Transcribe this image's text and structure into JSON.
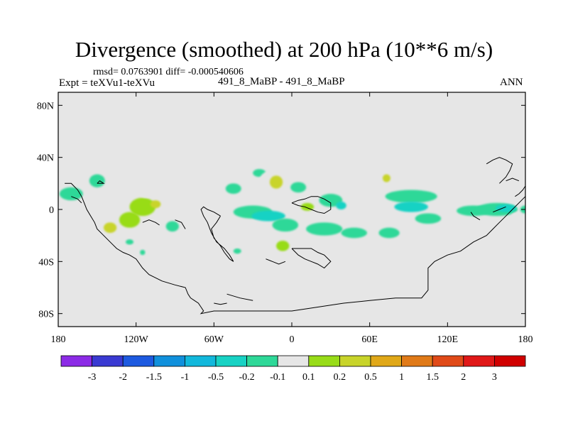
{
  "title": "Divergence (smoothed) at 200 hPa (10**6 m/s)",
  "stats": "rmsd= 0.0763901 diff= -0.000540606",
  "experiment": "Expt = teXVu1-teXVu",
  "cases": "491_8_MaBP - 491_8_MaBP",
  "season": "ANN",
  "map": {
    "lat_range": [
      -90,
      90
    ],
    "lon_range": [
      -180,
      180
    ],
    "background_color": "#e6e6e6",
    "lat_tick_labels": [
      {
        "lat": 80,
        "label": "80N"
      },
      {
        "lat": 40,
        "label": "40N"
      },
      {
        "lat": 0,
        "label": "0"
      },
      {
        "lat": -40,
        "label": "40S"
      },
      {
        "lat": -80,
        "label": "80S"
      }
    ],
    "lon_tick_labels": [
      {
        "lon": -180,
        "label": "180"
      },
      {
        "lon": -120,
        "label": "120W"
      },
      {
        "lon": -60,
        "label": "60W"
      },
      {
        "lon": 0,
        "label": "0"
      },
      {
        "lon": 60,
        "label": "60E"
      },
      {
        "lon": 120,
        "label": "120E"
      },
      {
        "lon": 180,
        "label": "180"
      }
    ],
    "anomalies": [
      {
        "lon": -170,
        "lat": 12,
        "rlon": 9,
        "rlat": 5,
        "level": 6
      },
      {
        "lon": -150,
        "lat": 22,
        "rlon": 6,
        "rlat": 5,
        "level": 6
      },
      {
        "lon": -154,
        "lat": 5,
        "rlon": 8,
        "rlat": 5,
        "level": 7
      },
      {
        "lon": -178,
        "lat": -3,
        "rlon": 4,
        "rlat": 4,
        "level": 7
      },
      {
        "lon": -145,
        "lat": -12,
        "rlon": 12,
        "rlat": 7,
        "level": 7
      },
      {
        "lon": -140,
        "lat": -14,
        "rlon": 5,
        "rlat": 4,
        "level": 9
      },
      {
        "lon": -115,
        "lat": 2,
        "rlon": 10,
        "rlat": 7,
        "level": 8
      },
      {
        "lon": -105,
        "lat": 4,
        "rlon": 4,
        "rlat": 3,
        "level": 9
      },
      {
        "lon": -112,
        "lat": 12,
        "rlon": 6,
        "rlat": 3,
        "level": 7
      },
      {
        "lon": -125,
        "lat": -8,
        "rlon": 8,
        "rlat": 6,
        "level": 8
      },
      {
        "lon": -95,
        "lat": -2,
        "rlon": 8,
        "rlat": 4,
        "level": 7
      },
      {
        "lon": -125,
        "lat": -25,
        "rlon": 3,
        "rlat": 2,
        "level": 6
      },
      {
        "lon": -115,
        "lat": -33,
        "rlon": 2,
        "rlat": 2,
        "level": 6
      },
      {
        "lon": -92,
        "lat": -13,
        "rlon": 5,
        "rlat": 4,
        "level": 6
      },
      {
        "lon": -125,
        "lat": 30,
        "rlon": 2,
        "rlat": 2,
        "level": 7
      },
      {
        "lon": -65,
        "lat": 16,
        "rlon": 5,
        "rlat": 3,
        "level": 7
      },
      {
        "lon": -45,
        "lat": 16,
        "rlon": 6,
        "rlat": 4,
        "level": 6
      },
      {
        "lon": -27,
        "lat": 12,
        "rlon": 5,
        "rlat": 3,
        "level": 7
      },
      {
        "lon": -25,
        "lat": 28,
        "rlon": 5,
        "rlat": 3,
        "level": 6
      },
      {
        "lon": -50,
        "lat": -20,
        "rlon": 9,
        "rlat": 6,
        "level": 7
      },
      {
        "lon": -42,
        "lat": -32,
        "rlon": 3,
        "rlat": 2,
        "level": 6
      },
      {
        "lon": -30,
        "lat": -2,
        "rlon": 15,
        "rlat": 5,
        "level": 6
      },
      {
        "lon": -18,
        "lat": -5,
        "rlon": 13,
        "rlat": 4,
        "level": 5
      },
      {
        "lon": -15,
        "lat": 22,
        "rlon": 10,
        "rlat": 8,
        "level": 7
      },
      {
        "lon": -12,
        "lat": 21,
        "rlon": 5,
        "rlat": 5,
        "level": 9
      },
      {
        "lon": 5,
        "lat": 17,
        "rlon": 6,
        "rlat": 4,
        "level": 6
      },
      {
        "lon": 25,
        "lat": 18,
        "rlon": 8,
        "rlat": 5,
        "level": 7
      },
      {
        "lon": 30,
        "lat": 7,
        "rlon": 9,
        "rlat": 5,
        "level": 6
      },
      {
        "lon": 38,
        "lat": 3,
        "rlon": 4,
        "rlat": 3,
        "level": 5
      },
      {
        "lon": 10,
        "lat": 0,
        "rlon": 12,
        "rlat": 6,
        "level": 7
      },
      {
        "lon": 12,
        "lat": 2,
        "rlon": 5,
        "rlat": 3,
        "level": 8
      },
      {
        "lon": -5,
        "lat": -12,
        "rlon": 10,
        "rlat": 5,
        "level": 6
      },
      {
        "lon": 25,
        "lat": -15,
        "rlon": 14,
        "rlat": 5,
        "level": 6
      },
      {
        "lon": 48,
        "lat": -18,
        "rlon": 10,
        "rlat": 4,
        "level": 6
      },
      {
        "lon": 75,
        "lat": -18,
        "rlon": 8,
        "rlat": 4,
        "level": 6
      },
      {
        "lon": 15,
        "lat": -33,
        "rlon": 22,
        "rlat": 7,
        "level": 7
      },
      {
        "lon": -7,
        "lat": -28,
        "rlon": 5,
        "rlat": 4,
        "level": 8
      },
      {
        "lon": 5,
        "lat": -50,
        "rlon": 10,
        "rlat": 6,
        "level": 7
      },
      {
        "lon": 25,
        "lat": -45,
        "rlon": 5,
        "rlat": 4,
        "level": 7
      },
      {
        "lon": 60,
        "lat": 23,
        "rlon": 12,
        "rlat": 5,
        "level": 7
      },
      {
        "lon": 75,
        "lat": 25,
        "rlon": 8,
        "rlat": 6,
        "level": 7
      },
      {
        "lon": 73,
        "lat": 24,
        "rlon": 3,
        "rlat": 3,
        "level": 9
      },
      {
        "lon": 92,
        "lat": 10,
        "rlon": 20,
        "rlat": 5,
        "level": 6
      },
      {
        "lon": 92,
        "lat": 2,
        "rlon": 13,
        "rlat": 4,
        "level": 5
      },
      {
        "lon": 105,
        "lat": -7,
        "rlon": 10,
        "rlat": 4,
        "level": 6
      },
      {
        "lon": 95,
        "lat": 32,
        "rlon": 5,
        "rlat": 3,
        "level": 7
      },
      {
        "lon": 55,
        "lat": 30,
        "rlon": 4,
        "rlat": 2,
        "level": 7
      },
      {
        "lon": 140,
        "lat": -1,
        "rlon": 13,
        "rlat": 4,
        "level": 6
      },
      {
        "lon": 158,
        "lat": 0,
        "rlon": 16,
        "rlat": 5,
        "level": 6
      },
      {
        "lon": 165,
        "lat": 1,
        "rlon": 8,
        "rlat": 3,
        "level": 5
      },
      {
        "lon": 148,
        "lat": -10,
        "rlon": 6,
        "rlat": 3,
        "level": 7
      },
      {
        "lon": 175,
        "lat": -5,
        "rlon": 6,
        "rlat": 3,
        "level": 7
      },
      {
        "lon": 165,
        "lat": 12,
        "rlon": 4,
        "rlat": 3,
        "level": 7
      },
      {
        "lon": 175,
        "lat": 16,
        "rlon": 3,
        "rlat": 3,
        "level": 7
      },
      {
        "lon": 125,
        "lat": 3,
        "rlon": 1,
        "rlat": 3,
        "level": 7
      },
      {
        "lon": 180,
        "lat": 0,
        "rlon": 4,
        "rlat": 3,
        "level": 6
      }
    ],
    "coastlines": [
      [
        [
          -175,
          20
        ],
        [
          -170,
          20
        ],
        [
          -165,
          15
        ],
        [
          -162,
          10
        ],
        [
          -160,
          5
        ],
        [
          -158,
          0
        ],
        [
          -155,
          -5
        ],
        [
          -152,
          -10
        ],
        [
          -150,
          -15
        ],
        [
          -145,
          -20
        ],
        [
          -140,
          -25
        ],
        [
          -135,
          -30
        ],
        [
          -130,
          -33
        ],
        [
          -125,
          -35
        ],
        [
          -120,
          -38
        ],
        [
          -115,
          -45
        ],
        [
          -110,
          -50
        ],
        [
          -100,
          -55
        ],
        [
          -90,
          -58
        ],
        [
          -82,
          -60
        ],
        [
          -80,
          -65
        ],
        [
          -78,
          -68
        ],
        [
          -75,
          -70
        ],
        [
          -72,
          -72
        ],
        [
          -70,
          -75
        ],
        [
          -68,
          -78
        ],
        [
          -70,
          -80
        ],
        [
          -60,
          -78
        ],
        [
          -40,
          -78
        ],
        [
          -20,
          -78
        ],
        [
          0,
          -78
        ],
        [
          20,
          -75
        ],
        [
          40,
          -72
        ],
        [
          60,
          -70
        ],
        [
          80,
          -68
        ],
        [
          100,
          -68
        ],
        [
          105,
          -62
        ],
        [
          105,
          -55
        ],
        [
          105,
          -45
        ],
        [
          110,
          -40
        ],
        [
          120,
          -35
        ],
        [
          130,
          -32
        ],
        [
          140,
          -25
        ],
        [
          150,
          -20
        ],
        [
          155,
          -15
        ],
        [
          160,
          -10
        ],
        [
          165,
          -5
        ],
        [
          170,
          0
        ],
        [
          175,
          5
        ],
        [
          180,
          10
        ]
      ],
      [
        [
          -150,
          20
        ],
        [
          -148,
          22
        ],
        [
          -145,
          20
        ],
        [
          -150,
          20
        ]
      ],
      [
        [
          -170,
          10
        ],
        [
          -165,
          8
        ],
        [
          -162,
          5
        ]
      ],
      [
        [
          -115,
          -10
        ],
        [
          -110,
          -8
        ],
        [
          -105,
          -10
        ],
        [
          -102,
          -12
        ]
      ],
      [
        [
          -55,
          -5
        ],
        [
          -60,
          -2
        ],
        [
          -65,
          0
        ],
        [
          -68,
          2
        ],
        [
          -70,
          0
        ],
        [
          -68,
          -5
        ],
        [
          -65,
          -10
        ],
        [
          -62,
          -18
        ],
        [
          -58,
          -25
        ],
        [
          -52,
          -30
        ],
        [
          -48,
          -35
        ],
        [
          -45,
          -40
        ],
        [
          -48,
          -38
        ],
        [
          -52,
          -33
        ],
        [
          -55,
          -28
        ],
        [
          -60,
          -22
        ],
        [
          -62,
          -15
        ],
        [
          -58,
          -10
        ],
        [
          -55,
          -5
        ]
      ],
      [
        [
          -90,
          -8
        ],
        [
          -85,
          -10
        ],
        [
          -82,
          -15
        ]
      ],
      [
        [
          0,
          5
        ],
        [
          5,
          3
        ],
        [
          10,
          2
        ],
        [
          15,
          0
        ],
        [
          20,
          -2
        ],
        [
          25,
          -3
        ],
        [
          30,
          0
        ],
        [
          30,
          5
        ],
        [
          25,
          8
        ],
        [
          20,
          10
        ],
        [
          15,
          10
        ],
        [
          10,
          8
        ],
        [
          5,
          7
        ],
        [
          0,
          5
        ]
      ],
      [
        [
          0,
          -30
        ],
        [
          5,
          -35
        ],
        [
          10,
          -38
        ],
        [
          15,
          -40
        ],
        [
          20,
          -42
        ],
        [
          25,
          -45
        ],
        [
          30,
          -40
        ],
        [
          25,
          -35
        ],
        [
          20,
          -33
        ],
        [
          15,
          -30
        ],
        [
          10,
          -30
        ],
        [
          5,
          -30
        ],
        [
          0,
          -30
        ]
      ],
      [
        [
          -20,
          -38
        ],
        [
          -15,
          -40
        ],
        [
          -10,
          -42
        ],
        [
          -5,
          -40
        ]
      ],
      [
        [
          -50,
          -65
        ],
        [
          -40,
          -68
        ],
        [
          -30,
          -70
        ]
      ],
      [
        [
          -60,
          -72
        ],
        [
          -55,
          -73
        ],
        [
          -50,
          -72
        ]
      ],
      [
        [
          150,
          35
        ],
        [
          155,
          38
        ],
        [
          160,
          40
        ],
        [
          165,
          38
        ],
        [
          170,
          35
        ],
        [
          168,
          30
        ],
        [
          165,
          25
        ],
        [
          160,
          20
        ]
      ],
      [
        [
          138,
          -2
        ],
        [
          140,
          -5
        ],
        [
          145,
          -8
        ]
      ],
      [
        [
          155,
          -2
        ],
        [
          160,
          0
        ],
        [
          165,
          2
        ]
      ],
      [
        [
          172,
          10
        ],
        [
          175,
          12
        ],
        [
          178,
          15
        ],
        [
          180,
          18
        ]
      ],
      [
        [
          165,
          22
        ],
        [
          170,
          24
        ],
        [
          175,
          22
        ]
      ]
    ]
  },
  "colorbar": {
    "labels": [
      "-3",
      "-2",
      "-1.5",
      "-1",
      "-0.5",
      "-0.2",
      "-0.1",
      "0.1",
      "0.2",
      "0.5",
      "1",
      "1.5",
      "2",
      "3"
    ],
    "colors": [
      "#8c2be6",
      "#3a3ad2",
      "#1d5ae0",
      "#1090dc",
      "#12b8dc",
      "#18d2c4",
      "#2ed898",
      "#e6e6e6",
      "#98dc18",
      "#c8d42a",
      "#e0a818",
      "#e07a18",
      "#e04a18",
      "#e01818",
      "#d00000"
    ]
  }
}
